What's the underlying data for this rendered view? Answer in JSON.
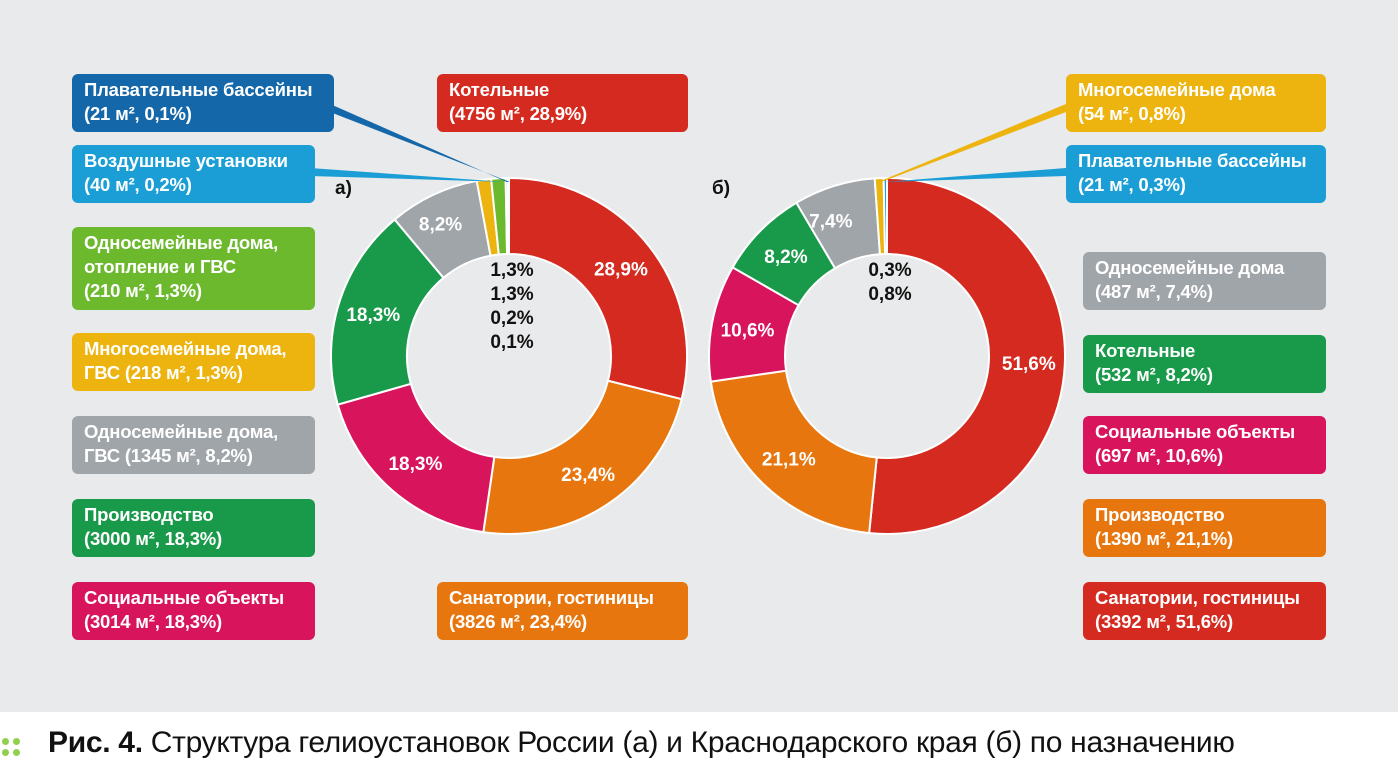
{
  "colors": {
    "panel_bg": "#e9eaeb",
    "red": "#d42a20",
    "orange": "#e8760e",
    "magenta": "#d8145c",
    "green": "#19994a",
    "grey": "#a0a5a9",
    "yellow": "#edb30e",
    "light_green": "#6cb92e",
    "light_blue": "#1a9ed5",
    "dark_blue": "#1467a8"
  },
  "chart_data": [
    {
      "type": "pie",
      "tag": "а)",
      "slices": [
        {
          "label": "Котельные",
          "value": 28.9,
          "area": "4756 м²",
          "color": "#d42a20",
          "text": "28,9%"
        },
        {
          "label": "Санатории, гостиницы",
          "value": 23.4,
          "area": "3826 м²",
          "color": "#e8760e",
          "text": "23,4%"
        },
        {
          "label": "Социальные объекты",
          "value": 18.3,
          "area": "3014 м²",
          "color": "#d8145c",
          "text": "18,3%"
        },
        {
          "label": "Производство",
          "value": 18.3,
          "area": "3000 м²",
          "color": "#19994a",
          "text": "18,3%"
        },
        {
          "label": "Односемейные дома, ГВС",
          "value": 8.2,
          "area": "1345 м²",
          "color": "#a0a5a9",
          "text": "8,2%"
        },
        {
          "label": "Многосемейные дома, ГВС",
          "value": 1.3,
          "area": "218 м²",
          "color": "#edb30e",
          "text": ""
        },
        {
          "label": "Односемейные дома, отопление и ГВС",
          "value": 1.3,
          "area": "210 м²",
          "color": "#6cb92e",
          "text": ""
        },
        {
          "label": "Воздушные установки",
          "value": 0.2,
          "area": "40 м²",
          "color": "#1a9ed5",
          "text": ""
        },
        {
          "label": "Плавательные бассейны",
          "value": 0.1,
          "area": "21 м²",
          "color": "#1467a8",
          "text": ""
        }
      ],
      "center_labels": [
        "1,3%",
        "1,3%",
        "0,2%",
        "0,1%"
      ]
    },
    {
      "type": "pie",
      "tag": "б)",
      "slices": [
        {
          "label": "Санатории, гостиницы",
          "value": 51.6,
          "area": "3392 м²",
          "color": "#d42a20",
          "text": "51,6%"
        },
        {
          "label": "Производство",
          "value": 21.1,
          "area": "1390 м²",
          "color": "#e8760e",
          "text": "21,1%"
        },
        {
          "label": "Социальные объекты",
          "value": 10.6,
          "area": "697 м²",
          "color": "#d8145c",
          "text": "10,6%"
        },
        {
          "label": "Котельные",
          "value": 8.2,
          "area": "532 м²",
          "color": "#19994a",
          "text": "8,2%"
        },
        {
          "label": "Односемейные дома",
          "value": 7.4,
          "area": "487 м²",
          "color": "#a0a5a9",
          "text": "7,4%"
        },
        {
          "label": "Многосемейные дома",
          "value": 0.8,
          "area": "54 м²",
          "color": "#edb30e",
          "text": ""
        },
        {
          "label": "Плавательные бассейны",
          "value": 0.3,
          "area": "21 м²",
          "color": "#1a9ed5",
          "text": ""
        }
      ],
      "center_labels": [
        "0,3%",
        "0,8%"
      ]
    }
  ],
  "legend_left": [
    {
      "line1": "Плавательные бассейны",
      "line2": "(21 м², 0,1%)",
      "color": "#1467a8"
    },
    {
      "line1": "Воздушные установки",
      "line2": "(40 м², 0,2%)",
      "color": "#1a9ed5"
    },
    {
      "line1": "Односемейные дома,",
      "line2": "отопление и ГВС",
      "line3": "(210 м², 1,3%)",
      "color": "#6cb92e"
    },
    {
      "line1": "Многосемейные дома,",
      "line2": "ГВС (218 м², 1,3%)",
      "color": "#edb30e"
    },
    {
      "line1": "Односемейные дома,",
      "line2": "ГВС (1345 м², 8,2%)",
      "color": "#a0a5a9"
    },
    {
      "line1": "Производство",
      "line2": "(3000 м², 18,3%)",
      "color": "#19994a"
    },
    {
      "line1": "Социальные объекты",
      "line2": "(3014 м², 18,3%)",
      "color": "#d8145c"
    }
  ],
  "legend_mid": [
    {
      "line1": "Котельные",
      "line2": "(4756 м², 28,9%)",
      "color": "#d42a20"
    },
    {
      "line1": "Санатории, гостиницы",
      "line2": "(3826 м², 23,4%)",
      "color": "#e8760e"
    }
  ],
  "legend_right": [
    {
      "line1": "Многосемейные дома",
      "line2": "(54 м², 0,8%)",
      "color": "#edb30e"
    },
    {
      "line1": "Плавательные бассейны",
      "line2": "(21 м², 0,3%)",
      "color": "#1a9ed5"
    },
    {
      "line1": "Односемейные дома",
      "line2": "(487 м², 7,4%)",
      "color": "#a0a5a9"
    },
    {
      "line1": "Котельные",
      "line2": "(532 м², 8,2%)",
      "color": "#19994a"
    },
    {
      "line1": "Социальные объекты",
      "line2": "(697 м², 10,6%)",
      "color": "#d8145c"
    },
    {
      "line1": "Производство",
      "line2": "(1390 м², 21,1%)",
      "color": "#e8760e"
    },
    {
      "line1": "Санатории, гостиницы",
      "line2": "(3392 м², 51,6%)",
      "color": "#d42a20"
    }
  ],
  "caption": {
    "bold": "Рис. 4.",
    "text": " Структура гелиоустановок России (а) и Краснодарского края (б) по назначению"
  }
}
